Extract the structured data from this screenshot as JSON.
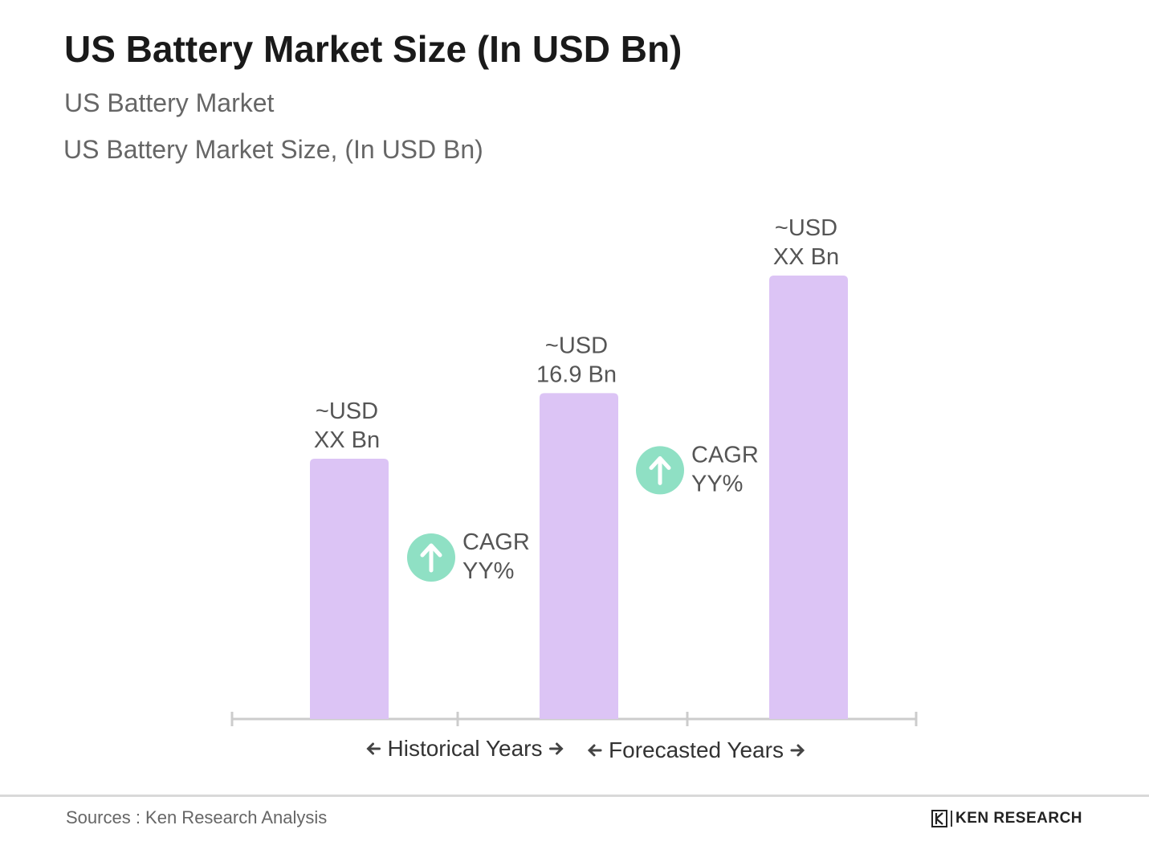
{
  "title": "US Battery Market Size (In USD Bn)",
  "subtitle1": "US Battery Market",
  "subtitle2": "US Battery Market Size, (In USD Bn)",
  "source": "Sources : Ken Research Analysis",
  "logo_text": "KEN RESEARCH",
  "colors": {
    "bar": "#dcc4f5",
    "cagr_circle": "#8fe0c4",
    "label": "#555555",
    "axis": "#cccccc"
  },
  "chart_data": {
    "type": "bar",
    "categories": [
      "",
      "",
      ""
    ],
    "values": [
      13.5,
      16.9,
      23.0
    ],
    "data_labels": [
      [
        "~USD",
        "XX Bn"
      ],
      [
        "~USD",
        "16.9 Bn"
      ],
      [
        "~USD",
        "XX Bn"
      ]
    ],
    "cagr_annotations": [
      [
        "CAGR",
        "YY%"
      ],
      [
        "CAGR",
        "YY%"
      ]
    ],
    "periods": [
      {
        "label": "Historical Years"
      },
      {
        "label": "Forecasted Years"
      }
    ],
    "ylim": [
      0,
      25
    ],
    "grid": false,
    "legend": "none"
  }
}
